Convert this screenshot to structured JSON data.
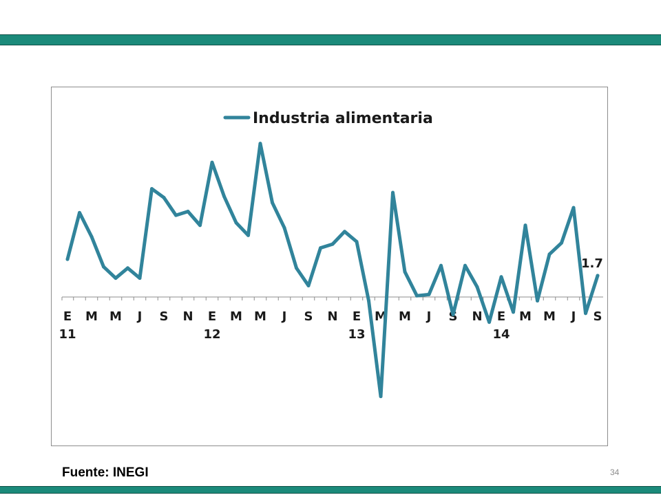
{
  "slide": {
    "source_label": "Fuente: INEGI",
    "page_number": "34",
    "band_color": "#1b8a7a"
  },
  "chart_data": {
    "type": "line",
    "title": "",
    "legend": {
      "position": "top",
      "entries": [
        "Industria alimentaria"
      ]
    },
    "series": [
      {
        "name": "Industria alimentaria",
        "color": "#31849b",
        "values": [
          3.0,
          6.7,
          4.8,
          2.4,
          1.5,
          2.3,
          1.5,
          8.6,
          7.9,
          6.5,
          6.8,
          5.7,
          10.7,
          8.0,
          5.9,
          4.9,
          12.2,
          7.5,
          5.5,
          2.3,
          0.9,
          3.9,
          4.2,
          5.2,
          4.4,
          -0.3,
          -7.9,
          8.3,
          2.0,
          0.1,
          0.2,
          2.5,
          -1.4,
          2.5,
          0.8,
          -2.0,
          1.6,
          -1.2,
          5.7,
          -0.3,
          3.4,
          4.3,
          7.1,
          -1.3,
          1.7
        ]
      }
    ],
    "data_labels": [
      {
        "index": 44,
        "text": "1.7"
      }
    ],
    "x_tick_labels": [
      "E",
      "M",
      "M",
      "J",
      "S",
      "N",
      "E",
      "M",
      "M",
      "J",
      "S",
      "N",
      "E",
      "M",
      "M",
      "J",
      "S",
      "N",
      "E",
      "M",
      "M",
      "J",
      "S"
    ],
    "year_labels": [
      {
        "tick_index": 0,
        "text": "11"
      },
      {
        "tick_index": 6,
        "text": "12"
      },
      {
        "tick_index": 12,
        "text": "13"
      },
      {
        "tick_index": 18,
        "text": "14"
      }
    ],
    "grid": false
  }
}
